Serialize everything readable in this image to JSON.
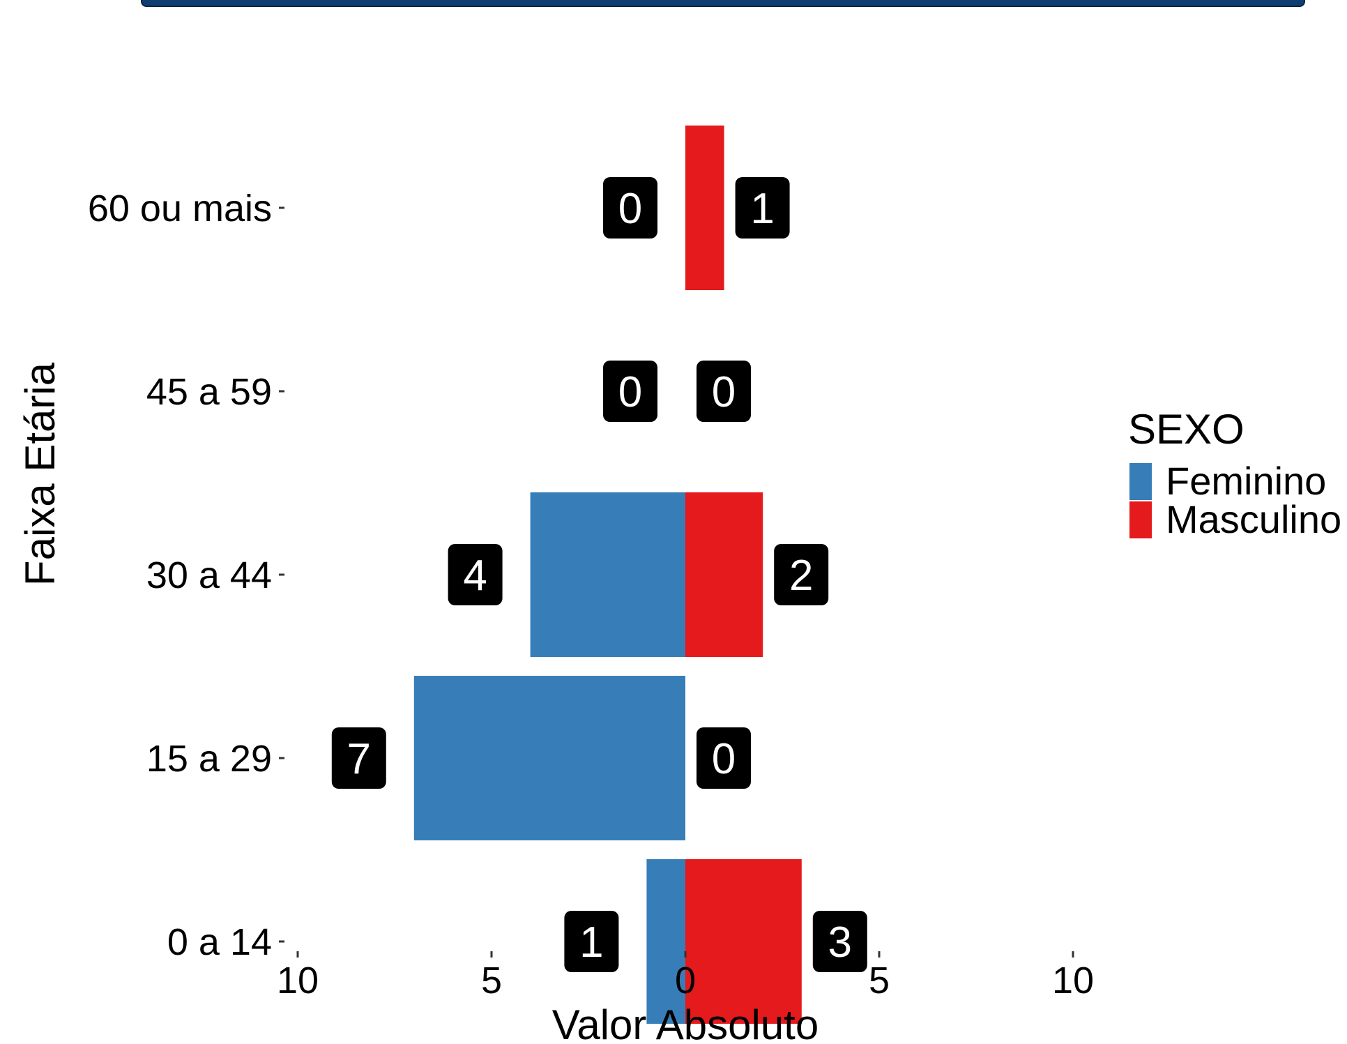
{
  "chart_data": {
    "type": "bar",
    "orientation": "horizontal",
    "layout": "population-pyramid",
    "categories": [
      "0 a 14",
      "15 a 29",
      "30 a 44",
      "45 a 59",
      "60 ou mais"
    ],
    "series": [
      {
        "name": "Feminino",
        "side": "left",
        "color": "#377eb8",
        "values": [
          1,
          7,
          4,
          0,
          0
        ]
      },
      {
        "name": "Masculino",
        "side": "right",
        "color": "#e41a1c",
        "values": [
          3,
          0,
          2,
          0,
          1
        ]
      }
    ],
    "xlabel": "Valor Absoluto",
    "ylabel": "Faixa Etária",
    "xticks": [
      "10",
      "5",
      "0",
      "5",
      "10"
    ],
    "xlim": [
      -10,
      10
    ],
    "legend": {
      "title": "SEXO",
      "position": "right"
    },
    "grid": false
  },
  "colors": {
    "banner": "#0f3f70",
    "label_box": "#000000",
    "label_text": "#ffffff"
  }
}
